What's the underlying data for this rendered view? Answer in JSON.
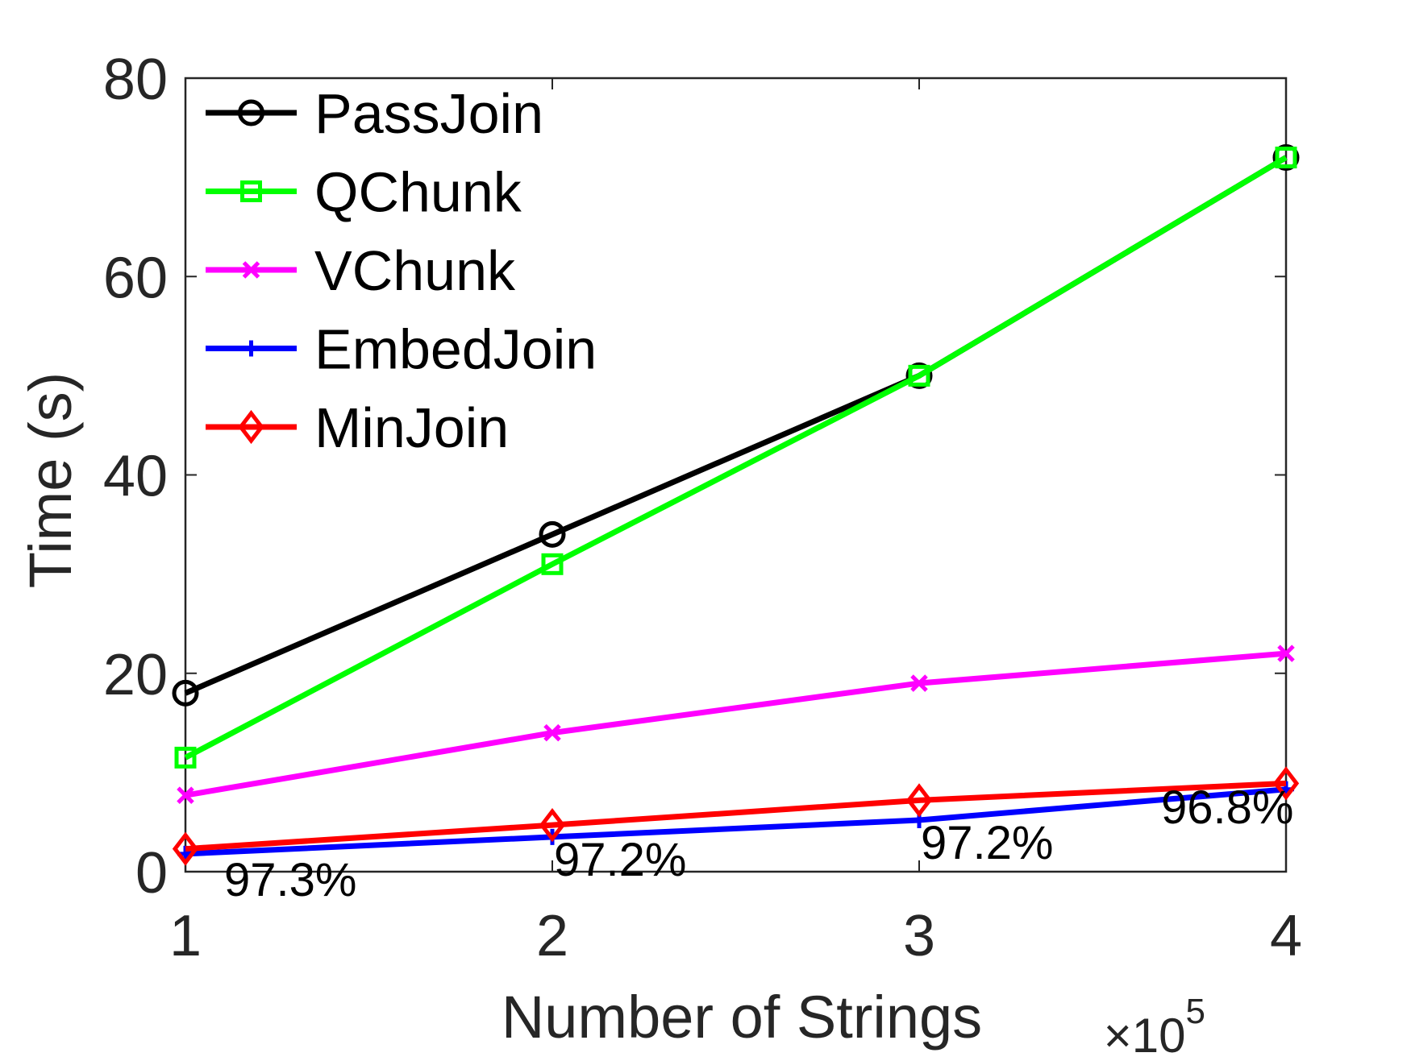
{
  "chart_data": {
    "type": "line",
    "title": "",
    "xlabel": "Number of Strings",
    "ylabel": "Time (s)",
    "x_multiplier": "×10",
    "x_multiplier_exponent": "5",
    "x": [
      1,
      2,
      3,
      4
    ],
    "xlim": [
      1,
      4
    ],
    "ylim": [
      0,
      80
    ],
    "xticks": [
      "1",
      "2",
      "3",
      "4"
    ],
    "yticks": [
      "0",
      "20",
      "40",
      "60",
      "80"
    ],
    "grid": false,
    "legend_position": "top-left",
    "series": [
      {
        "name": "PassJoin",
        "values": [
          18,
          34,
          50,
          72
        ],
        "color": "#000000",
        "marker": "circle"
      },
      {
        "name": "QChunk",
        "values": [
          11.5,
          31,
          50,
          72
        ],
        "color": "#00ff00",
        "marker": "square"
      },
      {
        "name": "VChunk",
        "values": [
          7.7,
          14,
          19,
          22
        ],
        "color": "#ff00ff",
        "marker": "x"
      },
      {
        "name": "EmbedJoin",
        "values": [
          1.8,
          3.5,
          5.2,
          8.3
        ],
        "color": "#0000ff",
        "marker": "plus"
      },
      {
        "name": "MinJoin",
        "values": [
          2.3,
          4.7,
          7.2,
          8.9
        ],
        "color": "#ff0000",
        "marker": "diamond"
      }
    ],
    "annotations": [
      {
        "text": "97.3%",
        "x": 1,
        "y": 1.8
      },
      {
        "text": "97.2%",
        "x": 2,
        "y": 3.5
      },
      {
        "text": "97.2%",
        "x": 3,
        "y": 5.2
      },
      {
        "text": "96.8%",
        "x": 4,
        "y": 8.3
      }
    ]
  }
}
